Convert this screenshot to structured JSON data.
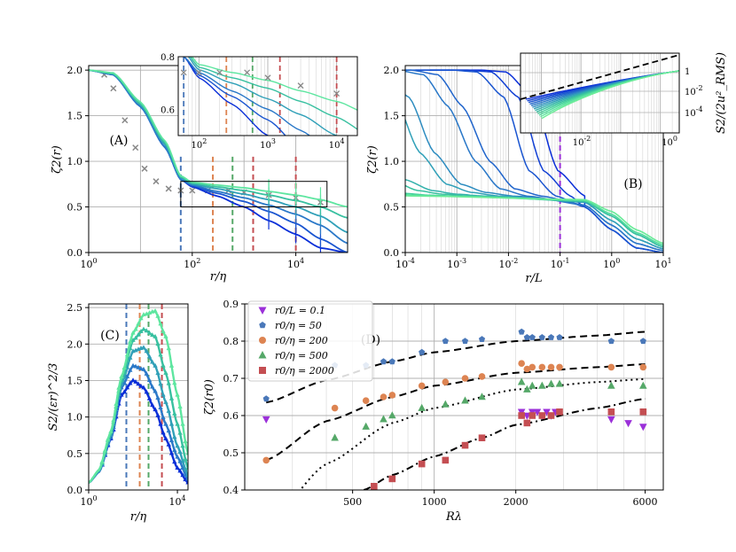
{
  "chart_data": [
    {
      "panel": "A",
      "type": "line",
      "label": "(A)",
      "xlabel": "r/η",
      "ylabel": "ζ2(r)",
      "xscale": "log",
      "xlim": [
        1,
        100000
      ],
      "ylim": [
        0.0,
        2.05
      ],
      "xticks": [
        "10^0",
        "10^2",
        "10^4"
      ],
      "yticks": [
        "0.0",
        "0.5",
        "1.0",
        "1.5",
        "2.0"
      ],
      "vlines": [
        {
          "x": 60,
          "color": "#4a78b9"
        },
        {
          "x": 250,
          "color": "#dd8452"
        },
        {
          "x": 600,
          "color": "#55a868"
        },
        {
          "x": 1500,
          "color": "#c44e52"
        },
        {
          "x": 10000,
          "color": "#c44e52"
        }
      ],
      "series_x": [
        1,
        3,
        10,
        30,
        60,
        100,
        300,
        1000,
        3000,
        10000,
        30000,
        100000
      ],
      "series": [
        {
          "name": "run-1",
          "color": "#0a2fd8",
          "values": [
            2.0,
            1.95,
            1.6,
            1.15,
            0.8,
            0.72,
            0.62,
            0.5,
            0.35,
            0.2,
            0.05,
            0.0
          ]
        },
        {
          "name": "run-2",
          "color": "#1a55d0",
          "values": [
            2.0,
            1.95,
            1.6,
            1.15,
            0.8,
            0.73,
            0.65,
            0.56,
            0.45,
            0.32,
            0.15,
            0.0
          ]
        },
        {
          "name": "run-3",
          "color": "#2a78c8",
          "values": [
            2.0,
            1.95,
            1.6,
            1.15,
            0.8,
            0.74,
            0.67,
            0.6,
            0.52,
            0.42,
            0.3,
            0.1
          ]
        },
        {
          "name": "run-4",
          "color": "#30a0b8",
          "values": [
            2.0,
            1.96,
            1.62,
            1.18,
            0.82,
            0.75,
            0.7,
            0.64,
            0.58,
            0.5,
            0.4,
            0.22
          ]
        },
        {
          "name": "run-5",
          "color": "#38c0a0",
          "values": [
            2.0,
            1.96,
            1.63,
            1.2,
            0.83,
            0.76,
            0.72,
            0.68,
            0.63,
            0.57,
            0.5,
            0.38
          ]
        },
        {
          "name": "run-6",
          "color": "#5ee6a0",
          "values": [
            2.0,
            1.97,
            1.65,
            1.22,
            0.84,
            0.77,
            0.74,
            0.71,
            0.67,
            0.63,
            0.58,
            0.5
          ]
        }
      ],
      "reference_points_x": [
        2,
        3,
        5,
        8,
        12,
        20,
        35,
        60,
        100,
        200,
        500,
        1000,
        3000,
        10000,
        30000
      ],
      "reference_points_y": [
        1.95,
        1.8,
        1.45,
        1.15,
        0.92,
        0.78,
        0.7,
        0.68,
        0.68,
        0.68,
        0.68,
        0.66,
        0.63,
        0.6,
        0.55
      ],
      "inset": {
        "xlim": [
          50,
          20000
        ],
        "ylim": [
          0.5,
          0.8
        ],
        "xticks": [
          "10^2",
          "10^3",
          "10^4"
        ],
        "yticks": [
          "0.6",
          "0.8"
        ]
      }
    },
    {
      "panel": "B",
      "type": "line",
      "label": "(B)",
      "xlabel": "r/L",
      "ylabel": "ζ2(r)",
      "xscale": "log",
      "xlim": [
        0.0001,
        10
      ],
      "ylim": [
        0.0,
        2.05
      ],
      "xticks": [
        "10^-4",
        "10^-3",
        "10^-2",
        "10^-1",
        "10^0",
        "10^1"
      ],
      "yticks": [
        "0.0",
        "0.5",
        "1.0",
        "1.5",
        "2.0"
      ],
      "vline": {
        "x": 0.1,
        "color": "#9b30d9"
      },
      "series_x": [
        0.0001,
        0.0003,
        0.001,
        0.003,
        0.01,
        0.03,
        0.1,
        0.3,
        1,
        3,
        10
      ],
      "series": [
        {
          "name": "run-1",
          "color": "#0a2fd8",
          "values": [
            2.0,
            2.0,
            2.0,
            1.98,
            1.7,
            0.9,
            0.62,
            0.5,
            0.25,
            0.05,
            0.0
          ]
        },
        {
          "name": "run-2",
          "color": "#1a55d0",
          "values": [
            2.0,
            2.0,
            1.95,
            1.6,
            1.0,
            0.7,
            0.62,
            0.52,
            0.3,
            0.1,
            0.02
          ]
        },
        {
          "name": "run-3",
          "color": "#2a78c8",
          "values": [
            2.0,
            1.98,
            1.7,
            1.1,
            0.75,
            0.66,
            0.62,
            0.55,
            0.35,
            0.15,
            0.04
          ]
        },
        {
          "name": "run-4",
          "color": "#30a0b8",
          "values": [
            1.98,
            1.7,
            1.15,
            0.8,
            0.68,
            0.64,
            0.62,
            0.56,
            0.4,
            0.2,
            0.06
          ]
        },
        {
          "name": "run-5",
          "color": "#38c0a0",
          "values": [
            1.8,
            1.3,
            0.85,
            0.7,
            0.65,
            0.63,
            0.62,
            0.57,
            0.42,
            0.22,
            0.08
          ]
        },
        {
          "name": "run-6",
          "color": "#5ee6a0",
          "values": [
            1.4,
            0.9,
            0.75,
            0.68,
            0.64,
            0.63,
            0.62,
            0.58,
            0.45,
            0.25,
            0.1
          ]
        }
      ],
      "inset": {
        "ylabel": "S2/(2u²_RMS)",
        "xticks": [
          "10^-2",
          "10^0"
        ],
        "yticks": [
          "1",
          "10^-2",
          "10^-4"
        ]
      }
    },
    {
      "panel": "C",
      "type": "line",
      "label": "(C)",
      "xlabel": "r/η",
      "ylabel": "S2/(εr)^2/3",
      "xscale": "log",
      "xlim": [
        1,
        30000
      ],
      "ylim": [
        0.0,
        2.55
      ],
      "xticks": [
        "10^0",
        "10^4"
      ],
      "yticks": [
        "0.0",
        "0.5",
        "1.0",
        "1.5",
        "2.0",
        "2.5"
      ],
      "vlines": [
        {
          "x": 50,
          "color": "#4a78b9"
        },
        {
          "x": 200,
          "color": "#dd8452"
        },
        {
          "x": 500,
          "color": "#55a868"
        },
        {
          "x": 2000,
          "color": "#c44e52"
        }
      ],
      "series_x": [
        1,
        3,
        10,
        30,
        100,
        300,
        1000,
        3000,
        10000,
        30000
      ],
      "series": [
        {
          "name": "run-1",
          "color": "#0a2fd8",
          "values": [
            0.1,
            0.25,
            0.7,
            1.3,
            1.5,
            1.4,
            1.1,
            0.7,
            0.3,
            0.1
          ]
        },
        {
          "name": "run-2",
          "color": "#2a78c8",
          "values": [
            0.1,
            0.25,
            0.72,
            1.4,
            1.7,
            1.65,
            1.35,
            0.9,
            0.45,
            0.15
          ]
        },
        {
          "name": "run-3",
          "color": "#30a0b8",
          "values": [
            0.1,
            0.26,
            0.75,
            1.45,
            1.9,
            1.95,
            1.7,
            1.2,
            0.6,
            0.2
          ]
        },
        {
          "name": "run-4",
          "color": "#38c0a0",
          "values": [
            0.1,
            0.27,
            0.78,
            1.5,
            2.05,
            2.2,
            2.1,
            1.6,
            0.9,
            0.3
          ]
        },
        {
          "name": "run-5",
          "color": "#5ee6a0",
          "values": [
            0.1,
            0.28,
            0.8,
            1.55,
            2.15,
            2.4,
            2.45,
            2.1,
            1.3,
            0.5
          ]
        }
      ]
    },
    {
      "panel": "D",
      "type": "scatter",
      "label": "(D)",
      "xlabel": "Rλ",
      "ylabel": "ζ2(r0)",
      "xscale": "log",
      "xlim": [
        200,
        7000
      ],
      "ylim": [
        0.4,
        0.9
      ],
      "xticks": [
        "500",
        "1000",
        "2000",
        "6000"
      ],
      "yticks": [
        "0.4",
        "0.5",
        "0.6",
        "0.7",
        "0.8",
        "0.9"
      ],
      "legend_location": "top-left",
      "legend": [
        {
          "label": "r0/L = 0.1",
          "marker": "triangle-down",
          "color": "#9b30d9"
        },
        {
          "label": "r0/η = 50",
          "marker": "pentagon",
          "color": "#4a78b9"
        },
        {
          "label": "r0/η = 200",
          "marker": "circle",
          "color": "#dd8452"
        },
        {
          "label": "r0/η = 500",
          "marker": "triangle-up",
          "color": "#55a868"
        },
        {
          "label": "r0/η = 2000",
          "marker": "square",
          "color": "#c44e52"
        }
      ],
      "series": [
        {
          "name": "r0/L = 0.1",
          "color": "#9b30d9",
          "marker": "triangle-down",
          "x": [
            240,
            2100,
            2200,
            2300,
            2400,
            2500,
            2600,
            2700,
            2800,
            4500,
            5200,
            5900
          ],
          "y": [
            0.59,
            0.61,
            0.6,
            0.61,
            0.61,
            0.6,
            0.61,
            0.6,
            0.61,
            0.59,
            0.58,
            0.57
          ]
        },
        {
          "name": "r0/η = 50",
          "color": "#4a78b9",
          "marker": "pentagon",
          "x": [
            240,
            430,
            560,
            650,
            700,
            900,
            1100,
            1300,
            1500,
            2100,
            2200,
            2300,
            2500,
            2700,
            2900,
            4500,
            5900
          ],
          "y": [
            0.645,
            0.735,
            0.735,
            0.745,
            0.745,
            0.77,
            0.8,
            0.8,
            0.805,
            0.825,
            0.81,
            0.81,
            0.81,
            0.81,
            0.81,
            0.8,
            0.8
          ]
        },
        {
          "name": "r0/η = 200",
          "color": "#dd8452",
          "marker": "circle",
          "x": [
            240,
            430,
            560,
            650,
            700,
            900,
            1100,
            1300,
            1500,
            2100,
            2200,
            2300,
            2500,
            2700,
            2900,
            4500,
            5900
          ],
          "y": [
            0.48,
            0.62,
            0.64,
            0.65,
            0.655,
            0.68,
            0.69,
            0.7,
            0.705,
            0.74,
            0.725,
            0.73,
            0.73,
            0.73,
            0.73,
            0.73,
            0.73
          ]
        },
        {
          "name": "r0/η = 500",
          "color": "#55a868",
          "marker": "triangle-up",
          "x": [
            430,
            560,
            650,
            700,
            900,
            1100,
            1300,
            1500,
            2100,
            2200,
            2300,
            2500,
            2700,
            2900,
            4500,
            5900
          ],
          "y": [
            0.54,
            0.57,
            0.59,
            0.6,
            0.62,
            0.63,
            0.64,
            0.65,
            0.69,
            0.67,
            0.68,
            0.68,
            0.685,
            0.685,
            0.68,
            0.68
          ]
        },
        {
          "name": "r0/η = 2000",
          "color": "#c44e52",
          "marker": "square",
          "x": [
            600,
            700,
            900,
            1100,
            1300,
            1500,
            2100,
            2200,
            2300,
            2500,
            2700,
            2900,
            4500,
            5900
          ],
          "y": [
            0.41,
            0.43,
            0.47,
            0.48,
            0.52,
            0.54,
            0.6,
            0.58,
            0.6,
            0.6,
            0.6,
            0.61,
            0.61,
            0.61
          ]
        }
      ],
      "fits": [
        {
          "style": "dashed",
          "x": [
            240,
            400,
            700,
            1000,
            2000,
            4000,
            6000
          ],
          "y": [
            0.635,
            0.695,
            0.745,
            0.77,
            0.8,
            0.815,
            0.825
          ]
        },
        {
          "style": "dashed",
          "x": [
            240,
            400,
            700,
            1000,
            2000,
            4000,
            6000
          ],
          "y": [
            0.48,
            0.585,
            0.65,
            0.68,
            0.715,
            0.73,
            0.738
          ]
        },
        {
          "style": "dotted",
          "x": [
            240,
            400,
            700,
            1000,
            2000,
            4000,
            6000
          ],
          "y": [
            0.3,
            0.47,
            0.58,
            0.62,
            0.67,
            0.69,
            0.698
          ]
        },
        {
          "style": "dashdot",
          "x": [
            550,
            700,
            1000,
            1500,
            2000,
            4000,
            6000
          ],
          "y": [
            0.4,
            0.44,
            0.49,
            0.54,
            0.575,
            0.62,
            0.645
          ]
        }
      ]
    }
  ]
}
